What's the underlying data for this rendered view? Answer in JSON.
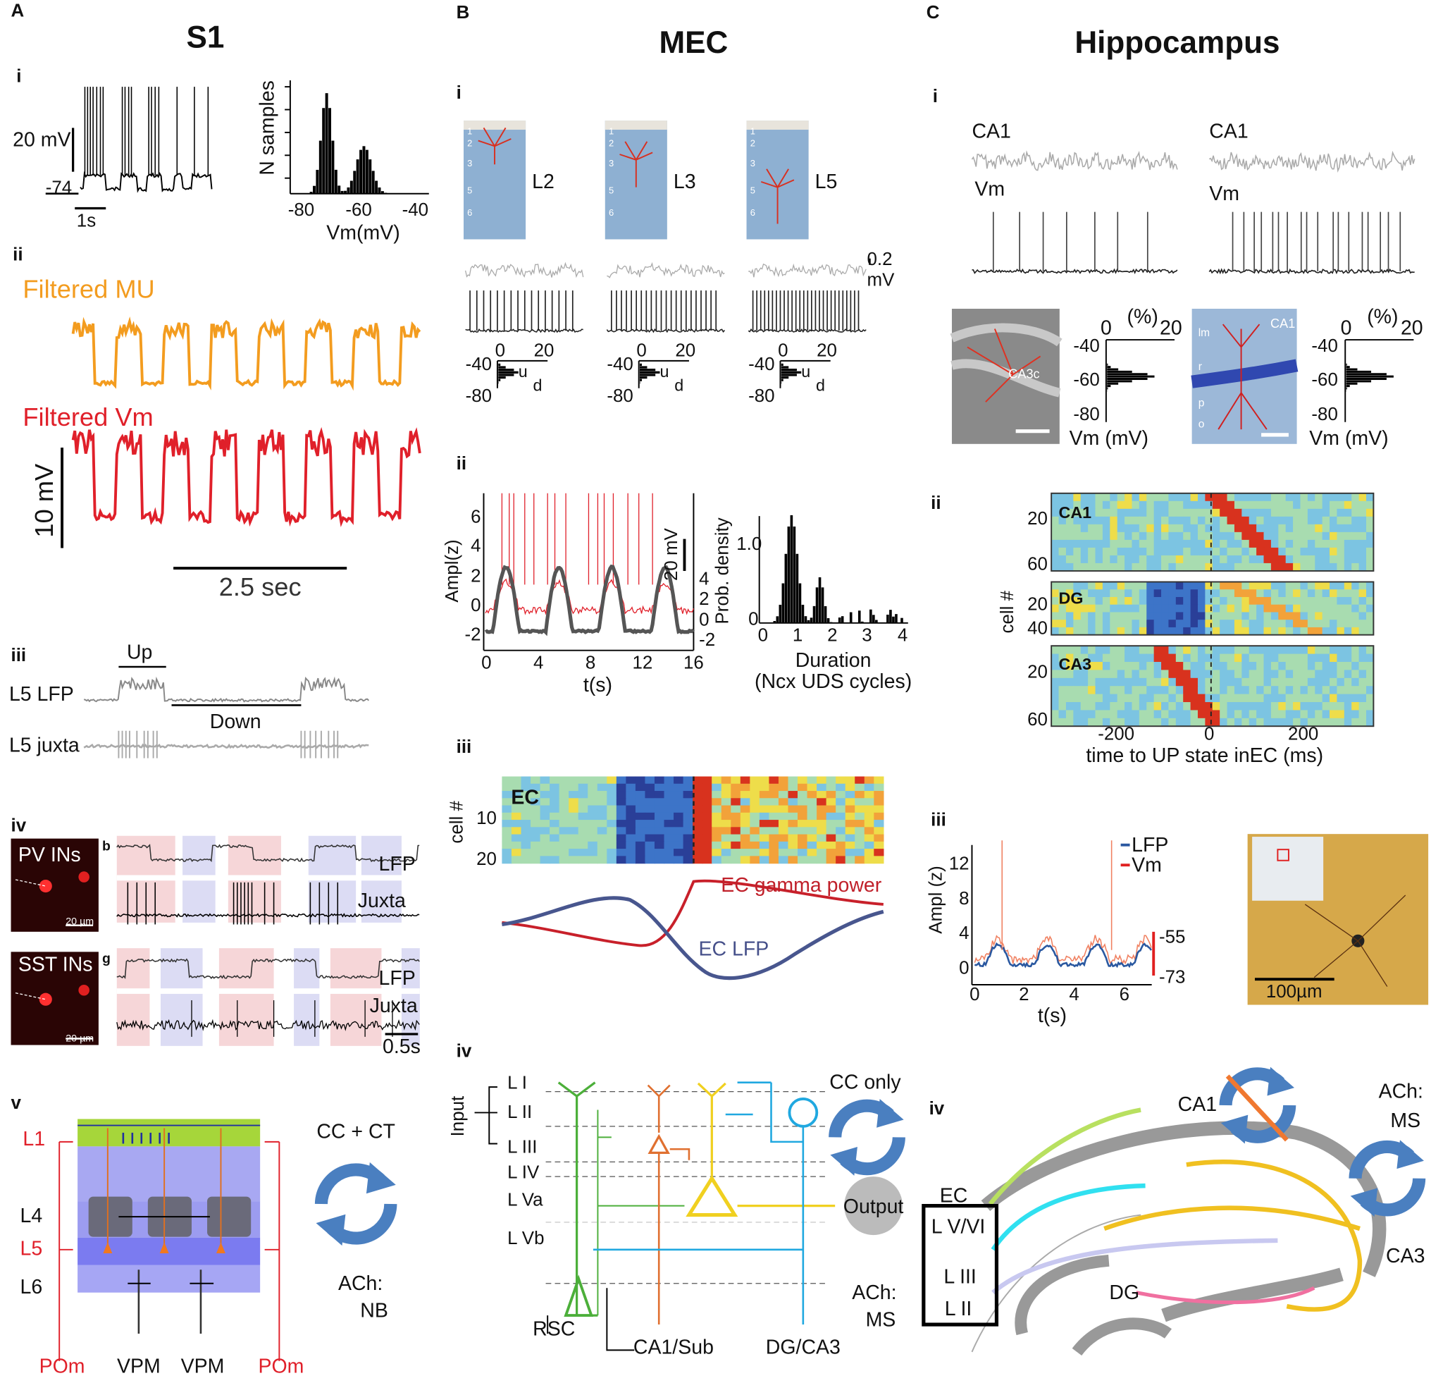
{
  "panel_a": {
    "labels": [
      "A",
      "S1",
      "i",
      "20 mV",
      "-74",
      "1s",
      "N samples",
      "-80",
      "-60",
      "-40",
      "Vm(mV)",
      "ii",
      "Filtered MU",
      "Filtered Vm",
      "10 mV",
      "2.5 sec",
      "iii",
      "Up",
      "L5 LFP",
      "Down",
      "L5 juxta",
      "iv",
      "PV INs",
      "20 µm",
      "b",
      "LFP",
      "Juxta",
      "SST INs",
      "20 µm",
      "g",
      "LFP",
      "Juxta",
      "0.5s",
      "v",
      "L1",
      "L4",
      "L5",
      "L6",
      "CC + CT",
      "ACh:",
      "NB",
      "POm",
      "VPM",
      "VPM",
      "POm"
    ]
  },
  "panel_b": {
    "labels": [
      "B",
      "MEC",
      "i",
      "L2",
      "L3",
      "L5",
      "0.2",
      "mV",
      "-40",
      "-80",
      "0",
      "20",
      "u",
      "d",
      "-40",
      "-80",
      "0",
      "20",
      "u",
      "d",
      "-40",
      "-80",
      "0",
      "20",
      "u",
      "d",
      "ii",
      "Ampl(z)",
      "6",
      "4",
      "2",
      "0",
      "-2",
      "20 mV",
      "4",
      "2",
      "0",
      "-2",
      "0",
      "4",
      "8",
      "12",
      "16",
      "t(s)",
      "Prob. density",
      "1.0",
      "0",
      "0",
      "1",
      "2",
      "3",
      "4",
      "Duration",
      "(Ncx UDS cycles)",
      "iii",
      "EC",
      "cell #",
      "10",
      "20",
      "EC gamma power",
      "EC LFP",
      "iv",
      "Input",
      "L I",
      "L II",
      "L III",
      "L IV",
      "L Va",
      "L Vb",
      "CC only",
      "Output",
      "ACh:",
      "MS",
      "RSC",
      "CA1/Sub",
      "DG/CA3",
      "1",
      "2",
      "3",
      "5",
      "6",
      "1",
      "2",
      "3",
      "5",
      "6",
      "1",
      "2",
      "3",
      "5",
      "6"
    ]
  },
  "panel_c": {
    "labels": [
      "C",
      "Hippocampus",
      "i",
      "CA1",
      "Vm",
      "CA1",
      "Vm",
      "CA3c",
      "(%)",
      "0",
      "20",
      "-40",
      "-60",
      "-80",
      "Vm (mV)",
      "lm",
      "r",
      "p",
      "o",
      "CA1",
      "(%)",
      "0",
      "20",
      "-40",
      "-60",
      "-80",
      "Vm (mV)",
      "ii",
      "CA1",
      "DG",
      "CA3",
      "20",
      "60",
      "20",
      "40",
      "20",
      "60",
      "cell #",
      "-200",
      "0",
      "200",
      "time to UP state inEC (ms)",
      "iii",
      "Ampl (z)",
      "12",
      "8",
      "4",
      "0",
      "LFP",
      "Vm",
      "-55",
      "-73",
      "0",
      "2",
      "4",
      "6",
      "t(s)",
      "100µm",
      "iv",
      "CA1",
      "ACh:",
      "MS",
      "EC",
      "L V/VI",
      "L III",
      "L II",
      "DG",
      "CA3"
    ]
  }
}
